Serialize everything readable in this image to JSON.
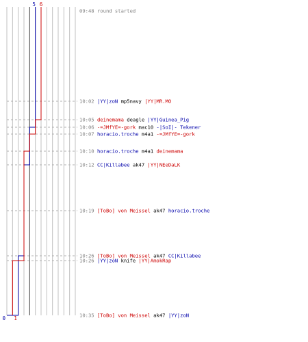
{
  "chart_data": {
    "type": "line",
    "title": "",
    "xlabel": "",
    "ylabel": "",
    "x_ticks": [
      "0",
      "1",
      "2",
      "3",
      "4",
      "5",
      "6"
    ],
    "xlim": [
      0,
      6
    ],
    "grid": true,
    "grid_color": "#c0c0c0",
    "highlight_gridline_x": 4,
    "highlight_gridline_color": "#606060",
    "series": [
      {
        "color": "#0000aa",
        "start": 5,
        "values": [
          5,
          5,
          5,
          5,
          4,
          4,
          4,
          3,
          3,
          2,
          2,
          1,
          0
        ]
      },
      {
        "color": "#cc0000",
        "start": 6,
        "values": [
          6,
          6,
          6,
          5,
          5,
          4,
          3,
          3,
          3,
          3,
          1,
          1,
          1
        ]
      }
    ],
    "events": [
      {
        "time": "09:48",
        "parts": [
          {
            "text": "round started",
            "color": "#808080"
          }
        ]
      },
      {
        "time": "10:02",
        "parts": [
          {
            "text": "|YY|zoN",
            "color": "#0000aa"
          },
          {
            "text": "mp5navy",
            "color": "#000000"
          },
          {
            "text": "|YY|MR.MO",
            "color": "#cc0000"
          }
        ]
      },
      {
        "time": "10:05",
        "parts": [
          {
            "text": "deinemama",
            "color": "#cc0000"
          },
          {
            "text": "deagle",
            "color": "#000000"
          },
          {
            "text": "|YY|Guinea_Pig",
            "color": "#0000aa"
          }
        ]
      },
      {
        "time": "10:06",
        "parts": [
          {
            "text": "-=JMfYE=-gork",
            "color": "#cc0000"
          },
          {
            "text": "mac10",
            "color": "#000000"
          },
          {
            "text": "-|SoI|- Tekener",
            "color": "#0000aa"
          }
        ]
      },
      {
        "time": "10:07",
        "parts": [
          {
            "text": "horacio.troche",
            "color": "#0000aa"
          },
          {
            "text": "m4a1",
            "color": "#000000"
          },
          {
            "text": "-=JMfYE=-gork",
            "color": "#cc0000"
          }
        ]
      },
      {
        "time": "10:10",
        "parts": [
          {
            "text": "horacio.troche",
            "color": "#0000aa"
          },
          {
            "text": "m4a1",
            "color": "#000000"
          },
          {
            "text": "deinemama",
            "color": "#cc0000"
          }
        ]
      },
      {
        "time": "10:12",
        "parts": [
          {
            "text": "CC|Killabee",
            "color": "#0000aa"
          },
          {
            "text": "ak47",
            "color": "#000000"
          },
          {
            "text": "|YY|NEeDaLK",
            "color": "#cc0000"
          }
        ]
      },
      {
        "time": "10:19",
        "parts": [
          {
            "text": "[ToBo] von Meissel",
            "color": "#cc0000"
          },
          {
            "text": "ak47",
            "color": "#000000"
          },
          {
            "text": "horacio.troche",
            "color": "#0000aa"
          }
        ]
      },
      {
        "time": "10:26",
        "parts": [
          {
            "text": "[ToBo] von Meissel",
            "color": "#cc0000"
          },
          {
            "text": "ak47",
            "color": "#000000"
          },
          {
            "text": "CC|Killabee",
            "color": "#0000aa"
          }
        ]
      },
      {
        "time": "10:26",
        "parts": [
          {
            "text": "|YY|zoN",
            "color": "#0000aa"
          },
          {
            "text": "knife",
            "color": "#000000"
          },
          {
            "text": "|YY|AmokRap",
            "color": "#cc0000"
          }
        ]
      },
      {
        "time": "10:35",
        "parts": [
          {
            "text": "[ToBo] von Meissel",
            "color": "#cc0000"
          },
          {
            "text": "ak47",
            "color": "#000000"
          },
          {
            "text": "|YY|zoN",
            "color": "#0000aa"
          }
        ]
      }
    ]
  }
}
